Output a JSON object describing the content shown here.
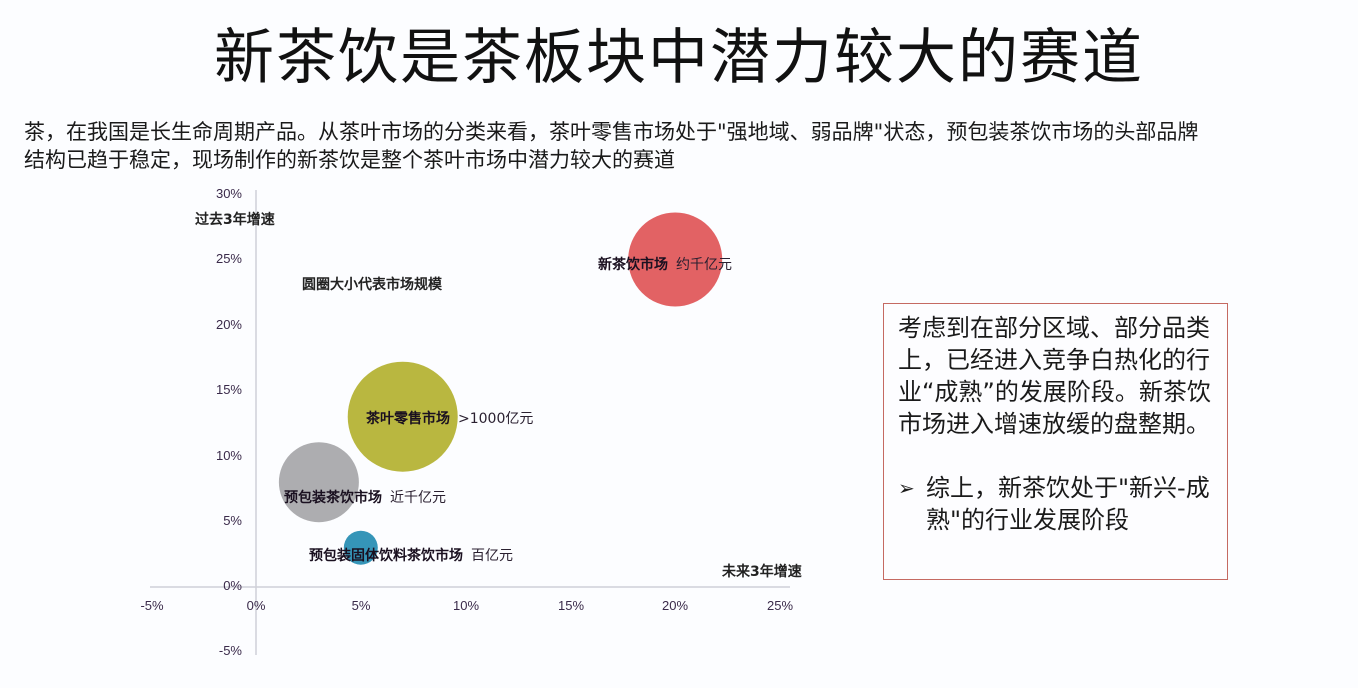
{
  "title": "新茶饮是茶板块中潜力较大的赛道",
  "intro": "茶，在我国是长生命周期产品。从茶叶市场的分类来看，茶叶零售市场处于\"强地域、弱品牌\"状态，预包装茶饮市场的头部品牌结构已趋于稳定，现场制作的新茶饮是整个茶叶市场中潜力较大的赛道",
  "chart": {
    "y_axis_title": "过去3年增速",
    "x_axis_title": "未来3年增速",
    "size_legend": "圆圈大小代表市场规模",
    "y_ticks": [
      "30%",
      "25%",
      "20%",
      "15%",
      "10%",
      "5%",
      "0%",
      "-5%"
    ],
    "x_ticks": [
      "-5%",
      "0%",
      "5%",
      "10%",
      "15%",
      "20%",
      "25%"
    ],
    "bubbles": [
      {
        "name": "新茶饮市场",
        "value": "约千亿元",
        "color": "#e05a5c"
      },
      {
        "name": "茶叶零售市场",
        "value": ">1000亿元",
        "color": "#b5b336"
      },
      {
        "name": "预包装茶饮市场",
        "value": "近千亿元",
        "color": "#a9a9ac"
      },
      {
        "name": "预包装固体饮料茶饮市场",
        "value": "百亿元",
        "color": "#2a8fb4"
      }
    ]
  },
  "note": {
    "paragraph": "考虑到在部分区域、部分品类上，已经进入竞争白热化的行业“成熟”的发展阶段。新茶饮市场进入增速放缓的盘整期。",
    "bullet_icon": "arrow-bullet-icon",
    "bullet_symbol": "➢",
    "bullet": "综上，新茶饮处于\"新兴-成熟\"的行业发展阶段"
  },
  "chart_data": {
    "type": "scatter",
    "subtype": "bubble",
    "title": "",
    "xlabel": "未来3年增速",
    "ylabel": "过去3年增速",
    "size_meaning": "圆圈大小代表市场规模",
    "xlim": [
      -5,
      25
    ],
    "ylim": [
      -5,
      30
    ],
    "x_unit": "%",
    "y_unit": "%",
    "x_tick_labels": [
      "-5%",
      "0%",
      "5%",
      "10%",
      "15%",
      "20%",
      "25%"
    ],
    "y_tick_labels": [
      "-5%",
      "0%",
      "5%",
      "10%",
      "15%",
      "20%",
      "25%",
      "30%"
    ],
    "grid": false,
    "legend": "none",
    "series": [
      {
        "name": "新茶饮市场",
        "x": 20,
        "y": 25,
        "size_label": "约千亿元",
        "relative_radius": 47,
        "color": "#e05a5c"
      },
      {
        "name": "茶叶零售市场",
        "x": 7,
        "y": 13,
        "size_label": ">1000亿元",
        "relative_radius": 55,
        "color": "#b5b336"
      },
      {
        "name": "预包装茶饮市场",
        "x": 3,
        "y": 8,
        "size_label": "近千亿元",
        "relative_radius": 40,
        "color": "#a9a9ac"
      },
      {
        "name": "预包装固体饮料茶饮市场",
        "x": 5,
        "y": 3,
        "size_label": "百亿元",
        "relative_radius": 17,
        "color": "#2a8fb4"
      }
    ]
  }
}
